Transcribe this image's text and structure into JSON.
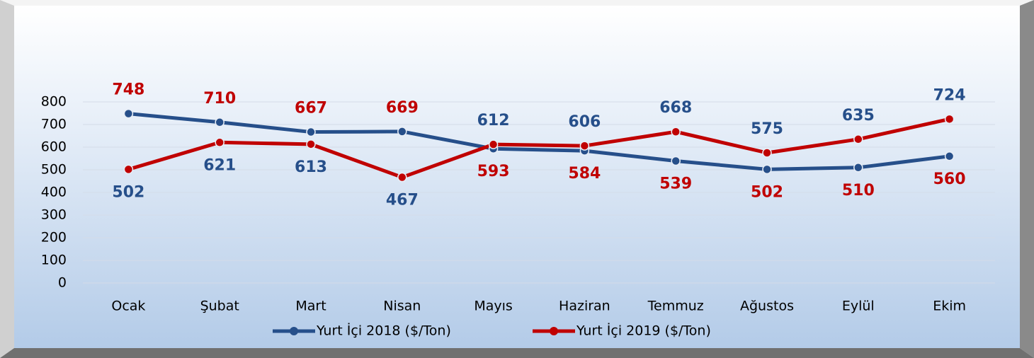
{
  "chart_data": {
    "type": "line",
    "categories": [
      "Ocak",
      "Şubat",
      "Mart",
      "Nisan",
      "Mayıs",
      "Haziran",
      "Temmuz",
      "Ağustos",
      "Eylül",
      "Ekim"
    ],
    "series": [
      {
        "name": "Yurt İçi 2018 ($/Ton)",
        "color": "#264f8a",
        "label_color": "#c00000",
        "values": [
          748,
          710,
          667,
          669,
          593,
          584,
          539,
          502,
          510,
          560
        ]
      },
      {
        "name": "Yurt İçi 2019 ($/Ton)",
        "color": "#c00000",
        "label_color": "#264f8a",
        "values": [
          502,
          621,
          613,
          467,
          612,
          606,
          668,
          575,
          635,
          724
        ]
      }
    ],
    "ylim": [
      0,
      800
    ],
    "yticks": [
      0,
      100,
      200,
      300,
      400,
      500,
      600,
      700,
      800
    ],
    "grid": true
  }
}
